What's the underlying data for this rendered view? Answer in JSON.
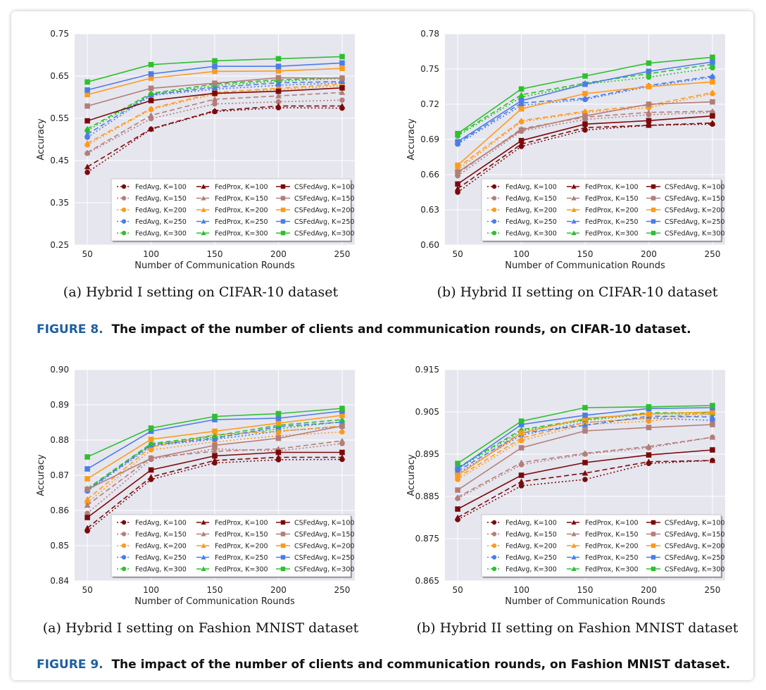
{
  "chart_data": [
    {
      "type": "line",
      "ylabel": "Accuracy",
      "xlabel": "Number of Communication Rounds",
      "x": [
        50,
        100,
        150,
        200,
        250
      ],
      "ylim": [
        0.25,
        0.75
      ],
      "yticks": [
        "0.25",
        "0.35",
        "0.45",
        "0.55",
        "0.65",
        "0.75"
      ],
      "grid": true,
      "legend_position": "lower-right",
      "series": [
        {
          "name": "FedAvg, K=100",
          "color": "#7b0a0a",
          "method": "FedAvg",
          "values": [
            0.422,
            0.524,
            0.566,
            0.575,
            0.574
          ]
        },
        {
          "name": "FedAvg, K=150",
          "color": "#b47e78",
          "method": "FedAvg",
          "values": [
            0.467,
            0.549,
            0.584,
            0.589,
            0.593
          ]
        },
        {
          "name": "FedAvg, K=200",
          "color": "#ff9a1a",
          "method": "FedAvg",
          "values": [
            0.487,
            0.571,
            0.607,
            0.618,
            0.627
          ]
        },
        {
          "name": "FedAvg, K=250",
          "color": "#4c7de6",
          "method": "FedAvg",
          "values": [
            0.505,
            0.604,
            0.619,
            0.628,
            0.634
          ]
        },
        {
          "name": "FedAvg, K=300",
          "color": "#2ec02e",
          "method": "FedAvg",
          "values": [
            0.521,
            0.607,
            0.627,
            0.638,
            0.644
          ]
        },
        {
          "name": "FedProx, K=100",
          "color": "#7b0a0a",
          "method": "FedProx",
          "values": [
            0.435,
            0.525,
            0.568,
            0.579,
            0.579
          ]
        },
        {
          "name": "FedProx, K=150",
          "color": "#b47e78",
          "method": "FedProx",
          "values": [
            0.469,
            0.557,
            0.595,
            0.603,
            0.611
          ]
        },
        {
          "name": "FedProx, K=200",
          "color": "#ff9a1a",
          "method": "FedProx",
          "values": [
            0.491,
            0.573,
            0.611,
            0.621,
            0.631
          ]
        },
        {
          "name": "FedProx, K=250",
          "color": "#4c7de6",
          "method": "FedProx",
          "values": [
            0.512,
            0.606,
            0.623,
            0.634,
            0.637
          ]
        },
        {
          "name": "FedProx, K=300",
          "color": "#2ec02e",
          "method": "FedProx",
          "values": [
            0.525,
            0.609,
            0.631,
            0.641,
            0.646
          ]
        },
        {
          "name": "CSFedAvg, K=100",
          "color": "#7b0a0a",
          "method": "CSFedAvg",
          "values": [
            0.544,
            0.592,
            0.609,
            0.614,
            0.622
          ]
        },
        {
          "name": "CSFedAvg, K=150",
          "color": "#b47e78",
          "method": "CSFedAvg",
          "values": [
            0.579,
            0.621,
            0.633,
            0.646,
            0.645
          ]
        },
        {
          "name": "CSFedAvg, K=200",
          "color": "#ff9a1a",
          "method": "CSFedAvg",
          "values": [
            0.606,
            0.645,
            0.661,
            0.662,
            0.668
          ]
        },
        {
          "name": "CSFedAvg, K=250",
          "color": "#4c7de6",
          "method": "CSFedAvg",
          "values": [
            0.617,
            0.655,
            0.673,
            0.673,
            0.681
          ]
        },
        {
          "name": "CSFedAvg, K=300",
          "color": "#2ec02e",
          "method": "CSFedAvg",
          "values": [
            0.636,
            0.677,
            0.686,
            0.691,
            0.696
          ]
        }
      ]
    },
    {
      "type": "line",
      "ylabel": "Accuracy",
      "xlabel": "Number of Communication Rounds",
      "x": [
        50,
        100,
        150,
        200,
        250
      ],
      "ylim": [
        0.6,
        0.78
      ],
      "yticks": [
        "0.60",
        "0.63",
        "0.66",
        "0.69",
        "0.72",
        "0.75",
        "0.78"
      ],
      "grid": true,
      "legend_position": "lower-right",
      "series": [
        {
          "name": "FedAvg, K=100",
          "color": "#7b0a0a",
          "method": "FedAvg",
          "values": [
            0.645,
            0.684,
            0.698,
            0.702,
            0.703
          ]
        },
        {
          "name": "FedAvg, K=150",
          "color": "#b47e78",
          "method": "FedAvg",
          "values": [
            0.659,
            0.697,
            0.707,
            0.711,
            0.713
          ]
        },
        {
          "name": "FedAvg, K=200",
          "color": "#ff9a1a",
          "method": "FedAvg",
          "values": [
            0.664,
            0.705,
            0.713,
            0.717,
            0.729
          ]
        },
        {
          "name": "FedAvg, K=250",
          "color": "#4c7de6",
          "method": "FedAvg",
          "values": [
            0.686,
            0.719,
            0.724,
            0.735,
            0.743
          ]
        },
        {
          "name": "FedAvg, K=300",
          "color": "#2ec02e",
          "method": "FedAvg",
          "values": [
            0.693,
            0.726,
            0.737,
            0.743,
            0.751
          ]
        },
        {
          "name": "FedProx, K=100",
          "color": "#7b0a0a",
          "method": "FedProx",
          "values": [
            0.648,
            0.686,
            0.7,
            0.702,
            0.704
          ]
        },
        {
          "name": "FedProx, K=150",
          "color": "#b47e78",
          "method": "FedProx",
          "values": [
            0.661,
            0.699,
            0.709,
            0.713,
            0.714
          ]
        },
        {
          "name": "FedProx, K=200",
          "color": "#ff9a1a",
          "method": "FedProx",
          "values": [
            0.666,
            0.706,
            0.714,
            0.719,
            0.73
          ]
        },
        {
          "name": "FedProx, K=250",
          "color": "#4c7de6",
          "method": "FedProx",
          "values": [
            0.687,
            0.721,
            0.725,
            0.736,
            0.744
          ]
        },
        {
          "name": "FedProx, K=300",
          "color": "#2ec02e",
          "method": "FedProx",
          "values": [
            0.694,
            0.728,
            0.738,
            0.746,
            0.754
          ]
        },
        {
          "name": "CSFedAvg, K=100",
          "color": "#7b0a0a",
          "method": "CSFedAvg",
          "values": [
            0.652,
            0.689,
            0.703,
            0.706,
            0.71
          ]
        },
        {
          "name": "CSFedAvg, K=150",
          "color": "#b47e78",
          "method": "CSFedAvg",
          "values": [
            0.662,
            0.698,
            0.71,
            0.72,
            0.722
          ]
        },
        {
          "name": "CSFedAvg, K=200",
          "color": "#ff9a1a",
          "method": "CSFedAvg",
          "values": [
            0.668,
            0.716,
            0.729,
            0.735,
            0.739
          ]
        },
        {
          "name": "CSFedAvg, K=250",
          "color": "#4c7de6",
          "method": "CSFedAvg",
          "values": [
            0.688,
            0.723,
            0.737,
            0.748,
            0.756
          ]
        },
        {
          "name": "CSFedAvg, K=300",
          "color": "#2ec02e",
          "method": "CSFedAvg",
          "values": [
            0.695,
            0.733,
            0.744,
            0.755,
            0.76
          ]
        }
      ]
    },
    {
      "type": "line",
      "ylabel": "Accuracy",
      "xlabel": "Number of Communication Rounds",
      "x": [
        50,
        100,
        150,
        200,
        250
      ],
      "ylim": [
        0.84,
        0.9
      ],
      "yticks": [
        "0.84",
        "0.85",
        "0.86",
        "0.87",
        "0.88",
        "0.89",
        "0.90"
      ],
      "grid": true,
      "legend_position": "lower-right",
      "series": [
        {
          "name": "FedAvg, K=100",
          "color": "#7b0a0a",
          "method": "FedAvg",
          "values": [
            0.8542,
            0.8688,
            0.8735,
            0.8744,
            0.8745
          ]
        },
        {
          "name": "FedAvg, K=150",
          "color": "#b47e78",
          "method": "FedAvg",
          "values": [
            0.8592,
            0.8745,
            0.8775,
            0.8769,
            0.879
          ]
        },
        {
          "name": "FedAvg, K=200",
          "color": "#ff9a1a",
          "method": "FedAvg",
          "values": [
            0.8622,
            0.8772,
            0.8795,
            0.8812,
            0.8823
          ]
        },
        {
          "name": "FedAvg, K=250",
          "color": "#4c7de6",
          "method": "FedAvg",
          "values": [
            0.8655,
            0.8783,
            0.8802,
            0.8825,
            0.8838
          ]
        },
        {
          "name": "FedAvg, K=300",
          "color": "#2ec02e",
          "method": "FedAvg",
          "values": [
            0.866,
            0.8788,
            0.8808,
            0.8832,
            0.8852
          ]
        },
        {
          "name": "FedProx, K=100",
          "color": "#7b0a0a",
          "method": "FedProx",
          "values": [
            0.855,
            0.8695,
            0.8742,
            0.8751,
            0.8751
          ]
        },
        {
          "name": "FedProx, K=150",
          "color": "#b47e78",
          "method": "FedProx",
          "values": [
            0.8615,
            0.875,
            0.8768,
            0.8775,
            0.8798
          ]
        },
        {
          "name": "FedProx, K=200",
          "color": "#ff9a1a",
          "method": "FedProx",
          "values": [
            0.8632,
            0.878,
            0.8815,
            0.8825,
            0.884
          ]
        },
        {
          "name": "FedProx, K=250",
          "color": "#4c7de6",
          "method": "FedProx",
          "values": [
            0.8658,
            0.8786,
            0.8805,
            0.8838,
            0.8851
          ]
        },
        {
          "name": "FedProx, K=300",
          "color": "#2ec02e",
          "method": "FedProx",
          "values": [
            0.8662,
            0.879,
            0.8812,
            0.8842,
            0.8858
          ]
        },
        {
          "name": "CSFedAvg, K=100",
          "color": "#7b0a0a",
          "method": "CSFedAvg",
          "values": [
            0.858,
            0.8715,
            0.8755,
            0.8765,
            0.8765
          ]
        },
        {
          "name": "CSFedAvg, K=150",
          "color": "#b47e78",
          "method": "CSFedAvg",
          "values": [
            0.866,
            0.8748,
            0.8785,
            0.8805,
            0.884
          ]
        },
        {
          "name": "CSFedAvg, K=200",
          "color": "#ff9a1a",
          "method": "CSFedAvg",
          "values": [
            0.869,
            0.8802,
            0.8825,
            0.8848,
            0.887
          ]
        },
        {
          "name": "CSFedAvg, K=250",
          "color": "#4c7de6",
          "method": "CSFedAvg",
          "values": [
            0.8718,
            0.8825,
            0.8858,
            0.8862,
            0.8882
          ]
        },
        {
          "name": "CSFedAvg, K=300",
          "color": "#2ec02e",
          "method": "CSFedAvg",
          "values": [
            0.8752,
            0.8834,
            0.8867,
            0.8875,
            0.889
          ]
        }
      ]
    },
    {
      "type": "line",
      "ylabel": "Accuracy",
      "xlabel": "Number of Communication Rounds",
      "x": [
        50,
        100,
        150,
        200,
        250
      ],
      "ylim": [
        0.865,
        0.915
      ],
      "yticks": [
        "0.865",
        "0.875",
        "0.885",
        "0.895",
        "0.905",
        "0.915"
      ],
      "grid": true,
      "legend_position": "lower-right",
      "series": [
        {
          "name": "FedAvg, K=100",
          "color": "#7b0a0a",
          "method": "FedAvg",
          "values": [
            0.8795,
            0.8875,
            0.889,
            0.8928,
            0.8935
          ]
        },
        {
          "name": "FedAvg, K=150",
          "color": "#b47e78",
          "method": "FedAvg",
          "values": [
            0.8845,
            0.8925,
            0.895,
            0.8965,
            0.899
          ]
        },
        {
          "name": "FedAvg, K=200",
          "color": "#ff9a1a",
          "method": "FedAvg",
          "values": [
            0.889,
            0.8982,
            0.902,
            0.9028,
            0.9045
          ]
        },
        {
          "name": "FedAvg, K=250",
          "color": "#4c7de6",
          "method": "FedAvg",
          "values": [
            0.8905,
            0.8995,
            0.9025,
            0.9035,
            0.903
          ]
        },
        {
          "name": "FedAvg, K=300",
          "color": "#2ec02e",
          "method": "FedAvg",
          "values": [
            0.8915,
            0.9005,
            0.903,
            0.9045,
            0.9045
          ]
        },
        {
          "name": "FedProx, K=100",
          "color": "#7b0a0a",
          "method": "FedProx",
          "values": [
            0.88,
            0.8885,
            0.8905,
            0.8932,
            0.8935
          ]
        },
        {
          "name": "FedProx, K=150",
          "color": "#b47e78",
          "method": "FedProx",
          "values": [
            0.8848,
            0.893,
            0.8952,
            0.8968,
            0.899
          ]
        },
        {
          "name": "FedProx, K=200",
          "color": "#ff9a1a",
          "method": "FedProx",
          "values": [
            0.8895,
            0.8988,
            0.9025,
            0.9035,
            0.9048
          ]
        },
        {
          "name": "FedProx, K=250",
          "color": "#4c7de6",
          "method": "FedProx",
          "values": [
            0.891,
            0.9,
            0.9018,
            0.904,
            0.9038
          ]
        },
        {
          "name": "FedProx, K=300",
          "color": "#2ec02e",
          "method": "FedProx",
          "values": [
            0.8918,
            0.9008,
            0.9032,
            0.9048,
            0.9048
          ]
        },
        {
          "name": "CSFedAvg, K=100",
          "color": "#7b0a0a",
          "method": "CSFedAvg",
          "values": [
            0.882,
            0.89,
            0.893,
            0.8948,
            0.896
          ]
        },
        {
          "name": "CSFedAvg, K=150",
          "color": "#b47e78",
          "method": "CSFedAvg",
          "values": [
            0.8865,
            0.8965,
            0.9005,
            0.9013,
            0.902
          ]
        },
        {
          "name": "CSFedAvg, K=200",
          "color": "#ff9a1a",
          "method": "CSFedAvg",
          "values": [
            0.89,
            0.9,
            0.9035,
            0.9045,
            0.905
          ]
        },
        {
          "name": "CSFedAvg, K=250",
          "color": "#4c7de6",
          "method": "CSFedAvg",
          "values": [
            0.8915,
            0.902,
            0.9042,
            0.9058,
            0.906
          ]
        },
        {
          "name": "CSFedAvg, K=300",
          "color": "#2ec02e",
          "method": "CSFedAvg",
          "values": [
            0.8928,
            0.9028,
            0.906,
            0.9062,
            0.9065
          ]
        }
      ]
    }
  ],
  "subcaptions": {
    "fig8a": "(a)  Hybrid I setting on CIFAR-10 dataset",
    "fig8b": "(b)  Hybrid II setting on CIFAR-10 dataset",
    "fig9a": "(a)  Hybrid I setting on Fashion MNIST dataset",
    "fig9b": "(b)  Hybrid II setting on Fashion MNIST dataset"
  },
  "captions": {
    "fig8_label": "FIGURE 8.",
    "fig8_text": "The impact of the number of clients and communication rounds, on CIFAR-10 dataset.",
    "fig9_label": "FIGURE 9.",
    "fig9_text": "The impact of the number of clients and communication rounds, on Fashion MNIST dataset."
  },
  "colors": {
    "plot_background": "#e6e6ef",
    "grid": "#ffffff",
    "caption_label": "#1e5fa0"
  }
}
